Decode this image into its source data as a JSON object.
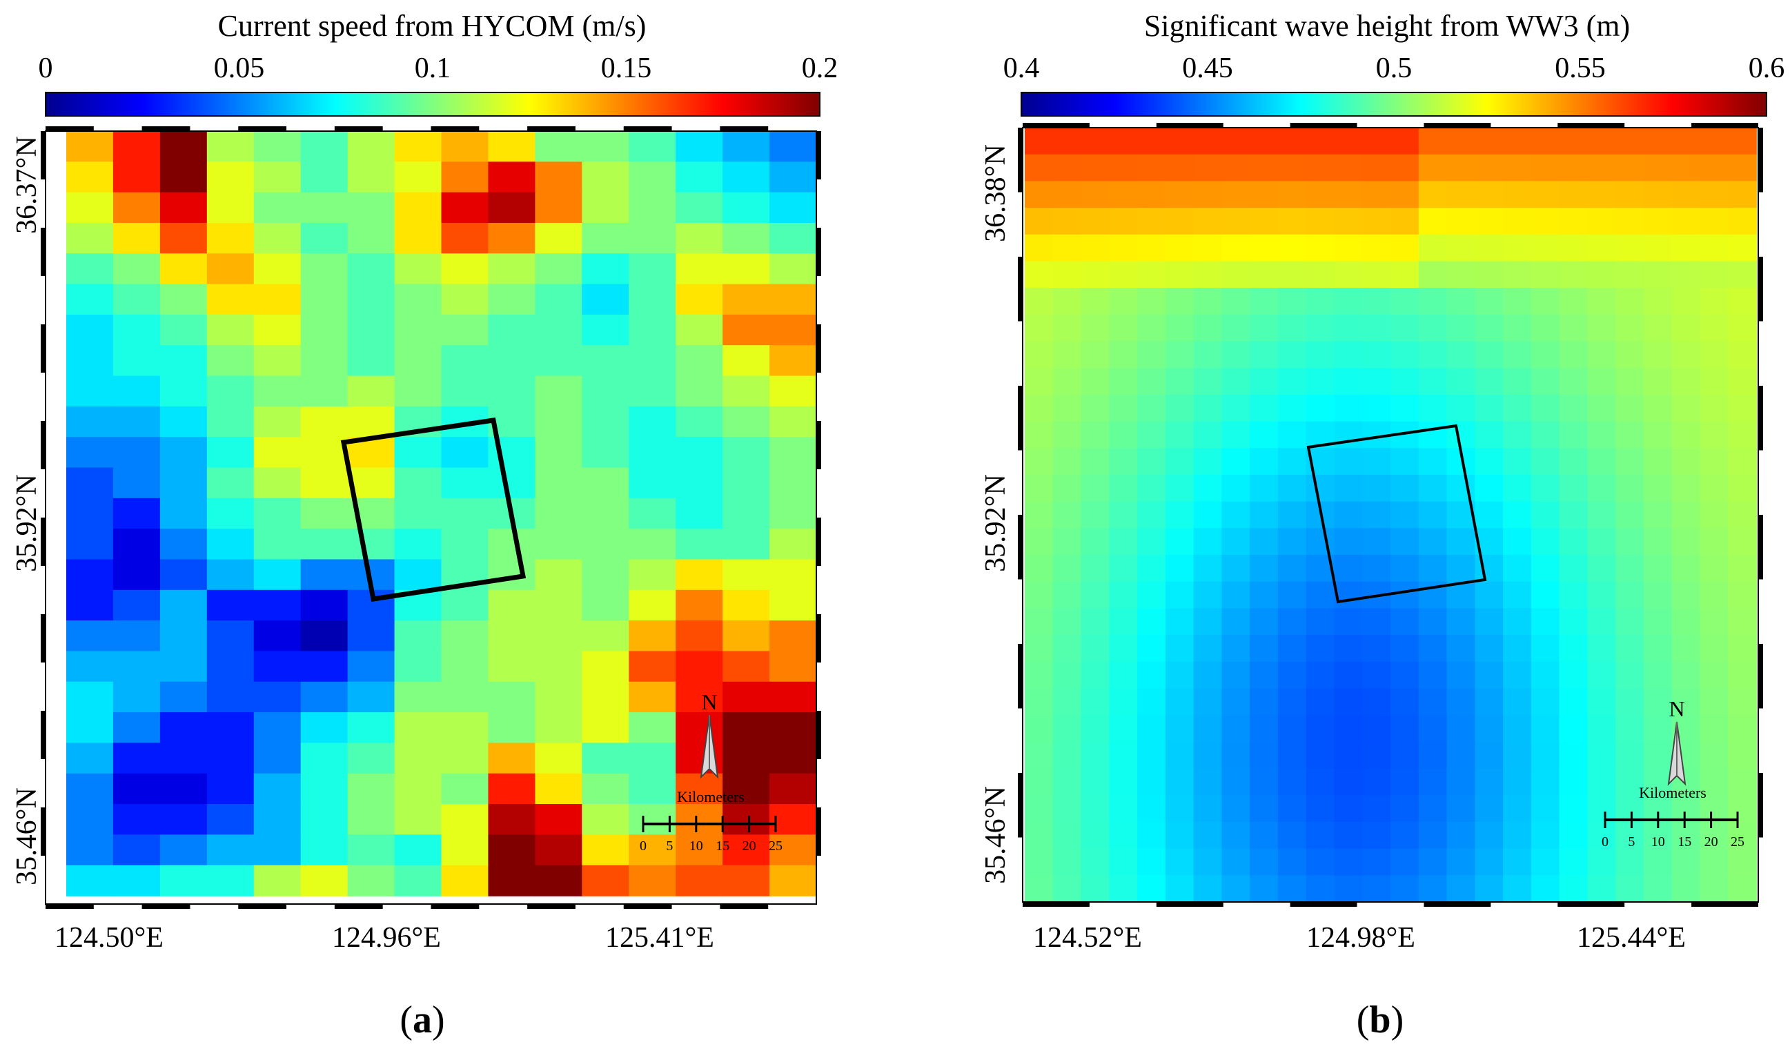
{
  "chart_data": [
    {
      "type": "heatmap",
      "panel_label": "a",
      "colorbar": {
        "title": "Current speed from HYCOM (m/s)",
        "range": [
          0,
          0.2
        ],
        "ticks": [
          0,
          0.05,
          0.1,
          0.15,
          0.2
        ],
        "tick_labels": [
          "0",
          "0.05",
          "0.1",
          "0.15",
          "0.2"
        ],
        "colormap": "jet"
      },
      "x_tick_labels": [
        "124.50°E",
        "124.96°E",
        "125.41°E"
      ],
      "y_tick_labels": [
        "36.37°N",
        "35.92°N",
        "35.46°N"
      ],
      "grid_rows_north_to_south": [
        [
          0.14,
          0.17,
          0.2,
          0.11,
          0.1,
          0.09,
          0.11,
          0.13,
          0.14,
          0.13,
          0.1,
          0.1,
          0.09,
          0.07,
          0.06,
          0.05
        ],
        [
          0.13,
          0.17,
          0.2,
          0.12,
          0.11,
          0.09,
          0.11,
          0.12,
          0.15,
          0.18,
          0.15,
          0.11,
          0.1,
          0.08,
          0.07,
          0.06
        ],
        [
          0.12,
          0.15,
          0.18,
          0.12,
          0.1,
          0.1,
          0.1,
          0.13,
          0.18,
          0.19,
          0.15,
          0.11,
          0.1,
          0.09,
          0.08,
          0.07
        ],
        [
          0.11,
          0.13,
          0.16,
          0.13,
          0.11,
          0.09,
          0.1,
          0.13,
          0.16,
          0.15,
          0.12,
          0.1,
          0.1,
          0.11,
          0.1,
          0.09
        ],
        [
          0.09,
          0.1,
          0.13,
          0.14,
          0.12,
          0.1,
          0.09,
          0.11,
          0.12,
          0.11,
          0.1,
          0.08,
          0.09,
          0.12,
          0.12,
          0.11
        ],
        [
          0.08,
          0.09,
          0.1,
          0.13,
          0.13,
          0.1,
          0.09,
          0.1,
          0.11,
          0.1,
          0.09,
          0.07,
          0.09,
          0.13,
          0.14,
          0.14
        ],
        [
          0.07,
          0.08,
          0.09,
          0.11,
          0.12,
          0.1,
          0.09,
          0.1,
          0.1,
          0.09,
          0.09,
          0.08,
          0.09,
          0.11,
          0.15,
          0.15
        ],
        [
          0.07,
          0.08,
          0.08,
          0.1,
          0.11,
          0.1,
          0.09,
          0.1,
          0.09,
          0.09,
          0.09,
          0.09,
          0.09,
          0.1,
          0.12,
          0.14
        ],
        [
          0.07,
          0.07,
          0.08,
          0.09,
          0.1,
          0.1,
          0.11,
          0.1,
          0.09,
          0.09,
          0.1,
          0.09,
          0.09,
          0.1,
          0.11,
          0.12
        ],
        [
          0.06,
          0.06,
          0.07,
          0.09,
          0.11,
          0.12,
          0.12,
          0.09,
          0.08,
          0.09,
          0.1,
          0.09,
          0.08,
          0.09,
          0.1,
          0.11
        ],
        [
          0.05,
          0.05,
          0.06,
          0.08,
          0.12,
          0.12,
          0.13,
          0.08,
          0.07,
          0.08,
          0.1,
          0.09,
          0.08,
          0.08,
          0.09,
          0.1
        ],
        [
          0.04,
          0.05,
          0.06,
          0.09,
          0.11,
          0.12,
          0.12,
          0.09,
          0.08,
          0.08,
          0.1,
          0.1,
          0.08,
          0.08,
          0.09,
          0.1
        ],
        [
          0.04,
          0.03,
          0.06,
          0.08,
          0.09,
          0.1,
          0.1,
          0.09,
          0.09,
          0.09,
          0.1,
          0.1,
          0.09,
          0.08,
          0.09,
          0.1
        ],
        [
          0.04,
          0.02,
          0.05,
          0.07,
          0.09,
          0.09,
          0.09,
          0.08,
          0.09,
          0.1,
          0.1,
          0.1,
          0.1,
          0.09,
          0.09,
          0.11
        ],
        [
          0.03,
          0.02,
          0.04,
          0.06,
          0.07,
          0.05,
          0.05,
          0.07,
          0.09,
          0.1,
          0.11,
          0.1,
          0.11,
          0.13,
          0.12,
          0.12
        ],
        [
          0.03,
          0.04,
          0.06,
          0.03,
          0.03,
          0.02,
          0.04,
          0.08,
          0.09,
          0.11,
          0.11,
          0.1,
          0.12,
          0.15,
          0.13,
          0.12
        ],
        [
          0.05,
          0.05,
          0.06,
          0.04,
          0.02,
          0.01,
          0.04,
          0.09,
          0.1,
          0.11,
          0.11,
          0.11,
          0.14,
          0.16,
          0.14,
          0.15
        ],
        [
          0.06,
          0.06,
          0.06,
          0.04,
          0.03,
          0.03,
          0.05,
          0.09,
          0.1,
          0.11,
          0.11,
          0.12,
          0.16,
          0.17,
          0.16,
          0.15
        ],
        [
          0.07,
          0.06,
          0.05,
          0.04,
          0.04,
          0.05,
          0.06,
          0.1,
          0.1,
          0.1,
          0.11,
          0.12,
          0.14,
          0.17,
          0.18,
          0.18
        ],
        [
          0.07,
          0.05,
          0.03,
          0.03,
          0.05,
          0.07,
          0.08,
          0.11,
          0.11,
          0.1,
          0.11,
          0.12,
          0.1,
          0.18,
          0.2,
          0.2
        ],
        [
          0.06,
          0.03,
          0.03,
          0.03,
          0.05,
          0.08,
          0.09,
          0.11,
          0.11,
          0.14,
          0.12,
          0.09,
          0.09,
          0.18,
          0.2,
          0.2
        ],
        [
          0.05,
          0.02,
          0.02,
          0.03,
          0.06,
          0.08,
          0.1,
          0.11,
          0.1,
          0.17,
          0.13,
          0.1,
          0.09,
          0.16,
          0.2,
          0.19
        ],
        [
          0.05,
          0.03,
          0.03,
          0.04,
          0.06,
          0.08,
          0.1,
          0.11,
          0.12,
          0.19,
          0.18,
          0.11,
          0.1,
          0.15,
          0.19,
          0.17
        ],
        [
          0.05,
          0.04,
          0.05,
          0.06,
          0.06,
          0.08,
          0.09,
          0.08,
          0.12,
          0.2,
          0.19,
          0.13,
          0.14,
          0.15,
          0.17,
          0.15
        ],
        [
          0.07,
          0.07,
          0.08,
          0.08,
          0.11,
          0.12,
          0.1,
          0.09,
          0.13,
          0.2,
          0.2,
          0.16,
          0.15,
          0.16,
          0.16,
          0.14
        ]
      ]
    },
    {
      "type": "heatmap",
      "panel_label": "b",
      "colorbar": {
        "title": "Significant wave height from WW3 (m)",
        "range": [
          0.4,
          0.6
        ],
        "ticks": [
          0.4,
          0.45,
          0.5,
          0.55,
          0.6
        ],
        "tick_labels": [
          "0.4",
          "0.45",
          "0.5",
          "0.55",
          "0.6"
        ],
        "colormap": "jet"
      },
      "x_tick_labels": [
        "124.52°E",
        "124.98°E",
        "125.44°E"
      ],
      "y_tick_labels": [
        "36.38°N",
        "35.92°N",
        "35.46°N"
      ],
      "field_model": {
        "description": "smooth field: ~0.56 m along the north edge, ~0.50 m mid-north, minimum ~0.445 m south of centre near x 0.45, ~0.49 m at the west edge",
        "grid_cols": 26,
        "grid_rows": 29,
        "north_edge_value": 0.565,
        "min_value": 0.445,
        "west_edge_value": 0.49
      }
    }
  ],
  "compass": {
    "north_label": "N",
    "scale_title": "Kilometers",
    "scale_ticks": [
      "0",
      "5",
      "10",
      "15",
      "20",
      "25"
    ]
  }
}
